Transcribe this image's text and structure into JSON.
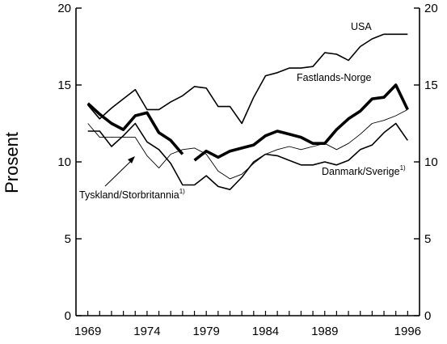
{
  "chart_data": {
    "type": "line",
    "title": "",
    "xlabel": "",
    "ylabel": "Prosent",
    "xlim": [
      1968,
      1997
    ],
    "ylim": [
      0,
      20
    ],
    "xticks": [
      1969,
      1974,
      1979,
      1984,
      1989,
      1996
    ],
    "yticks": [
      0,
      5,
      10,
      15,
      20
    ],
    "grid": false,
    "series": [
      {
        "name": "USA",
        "label_text": "USA",
        "width": 1.6,
        "x": [
          1969,
          1970,
          1971,
          1972,
          1973,
          1974,
          1975,
          1976,
          1977,
          1978,
          1979,
          1980,
          1981,
          1982,
          1983,
          1984,
          1985,
          1986,
          1987,
          1988,
          1989,
          1990,
          1991,
          1992,
          1993,
          1994,
          1995,
          1996
        ],
        "y": [
          13.7,
          12.8,
          13.5,
          14.1,
          14.7,
          13.4,
          13.4,
          13.9,
          14.3,
          14.9,
          14.8,
          13.6,
          13.6,
          12.5,
          14.2,
          15.6,
          15.8,
          16.1,
          16.1,
          16.2,
          17.1,
          17.0,
          16.6,
          17.5,
          18.0,
          18.3,
          18.3,
          18.3
        ]
      },
      {
        "name": "Fastlands-Norge",
        "label_text": "Fastlands-Norge",
        "width": 3.6,
        "segments": [
          {
            "x": [
              1969,
              1970,
              1971,
              1972,
              1973,
              1974,
              1975,
              1976,
              1977
            ],
            "y": [
              13.8,
              13.1,
              12.5,
              12.1,
              13.0,
              13.2,
              11.9,
              11.4,
              10.5
            ]
          },
          {
            "x": [
              1978,
              1979,
              1980,
              1981,
              1982,
              1983,
              1984,
              1985,
              1986,
              1987,
              1988,
              1989,
              1990,
              1991,
              1992,
              1993,
              1994,
              1995,
              1996
            ],
            "y": [
              10.1,
              10.7,
              10.3,
              10.7,
              10.9,
              11.1,
              11.7,
              12.0,
              11.8,
              11.6,
              11.2,
              11.2,
              12.1,
              12.8,
              13.3,
              14.1,
              14.2,
              15.0,
              13.4
            ]
          }
        ]
      },
      {
        "name": "Danmark/Sverige",
        "label_text": "Danmark/Sverige",
        "label_sup": "1)",
        "width": 1.6,
        "x": [
          1969,
          1970,
          1971,
          1972,
          1973,
          1974,
          1975,
          1976,
          1977,
          1978,
          1979,
          1980,
          1981,
          1982,
          1983,
          1984,
          1985,
          1986,
          1987,
          1988,
          1989,
          1990,
          1991,
          1992,
          1993,
          1994,
          1995,
          1996
        ],
        "y": [
          12.0,
          12.0,
          11.0,
          11.7,
          12.5,
          11.3,
          10.8,
          9.9,
          8.5,
          8.5,
          9.1,
          8.4,
          8.2,
          9.0,
          10.0,
          10.5,
          10.4,
          10.1,
          9.8,
          9.8,
          10.0,
          9.8,
          10.1,
          10.8,
          11.1,
          11.9,
          12.5,
          11.4
        ]
      },
      {
        "name": "Tyskland/Storbritannia",
        "label_text": "Tyskland/Storbritannia",
        "label_sup": "1)",
        "width": 0.9,
        "x": [
          1969,
          1970,
          1971,
          1972,
          1973,
          1974,
          1975,
          1976,
          1977,
          1978,
          1979,
          1980,
          1981,
          1982,
          1983,
          1984,
          1985,
          1986,
          1987,
          1988,
          1989,
          1990,
          1991,
          1992,
          1993,
          1994,
          1995,
          1996
        ],
        "y": [
          12.5,
          11.6,
          11.6,
          11.6,
          11.6,
          10.4,
          9.6,
          10.5,
          10.8,
          10.9,
          10.5,
          9.4,
          8.9,
          9.2,
          9.9,
          10.5,
          10.8,
          11.0,
          10.8,
          11.0,
          11.2,
          10.8,
          11.2,
          11.8,
          12.5,
          12.7,
          13.0,
          13.4
        ]
      }
    ]
  }
}
